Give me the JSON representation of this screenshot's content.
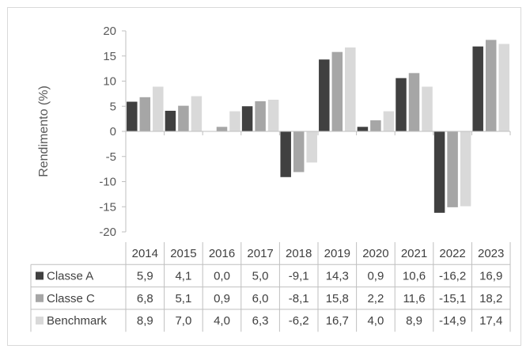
{
  "chart_data": {
    "type": "bar",
    "title": "",
    "xlabel": "",
    "ylabel": "Rendimento (%)",
    "ylim": [
      -20,
      20
    ],
    "yticks": [
      20,
      15,
      10,
      5,
      0,
      -5,
      -10,
      -15,
      -20
    ],
    "categories": [
      "2014",
      "2015",
      "2016",
      "2017",
      "2018",
      "2019",
      "2020",
      "2021",
      "2022",
      "2023"
    ],
    "series": [
      {
        "name": "Classe A",
        "color": "#404040",
        "values": [
          5.9,
          4.1,
          0.0,
          5.0,
          -9.1,
          14.3,
          0.9,
          10.6,
          -16.2,
          16.9
        ],
        "labels": [
          "5,9",
          "4,1",
          "0,0",
          "5,0",
          "-9,1",
          "14,3",
          "0,9",
          "10,6",
          "-16,2",
          "16,9"
        ]
      },
      {
        "name": "Classe C",
        "color": "#a6a6a6",
        "values": [
          6.8,
          5.1,
          0.9,
          6.0,
          -8.1,
          15.8,
          2.2,
          11.6,
          -15.1,
          18.2
        ],
        "labels": [
          "6,8",
          "5,1",
          "0,9",
          "6,0",
          "-8,1",
          "15,8",
          "2,2",
          "11,6",
          "-15,1",
          "18,2"
        ]
      },
      {
        "name": "Benchmark",
        "color": "#d9d9d9",
        "values": [
          8.9,
          7.0,
          4.0,
          6.3,
          -6.2,
          16.7,
          4.0,
          8.9,
          -14.9,
          17.4
        ],
        "labels": [
          "8,9",
          "7,0",
          "4,0",
          "6,3",
          "-6,2",
          "16,7",
          "4,0",
          "8,9",
          "-14,9",
          "17,4"
        ]
      }
    ],
    "legend": "data-table",
    "grid": false
  }
}
